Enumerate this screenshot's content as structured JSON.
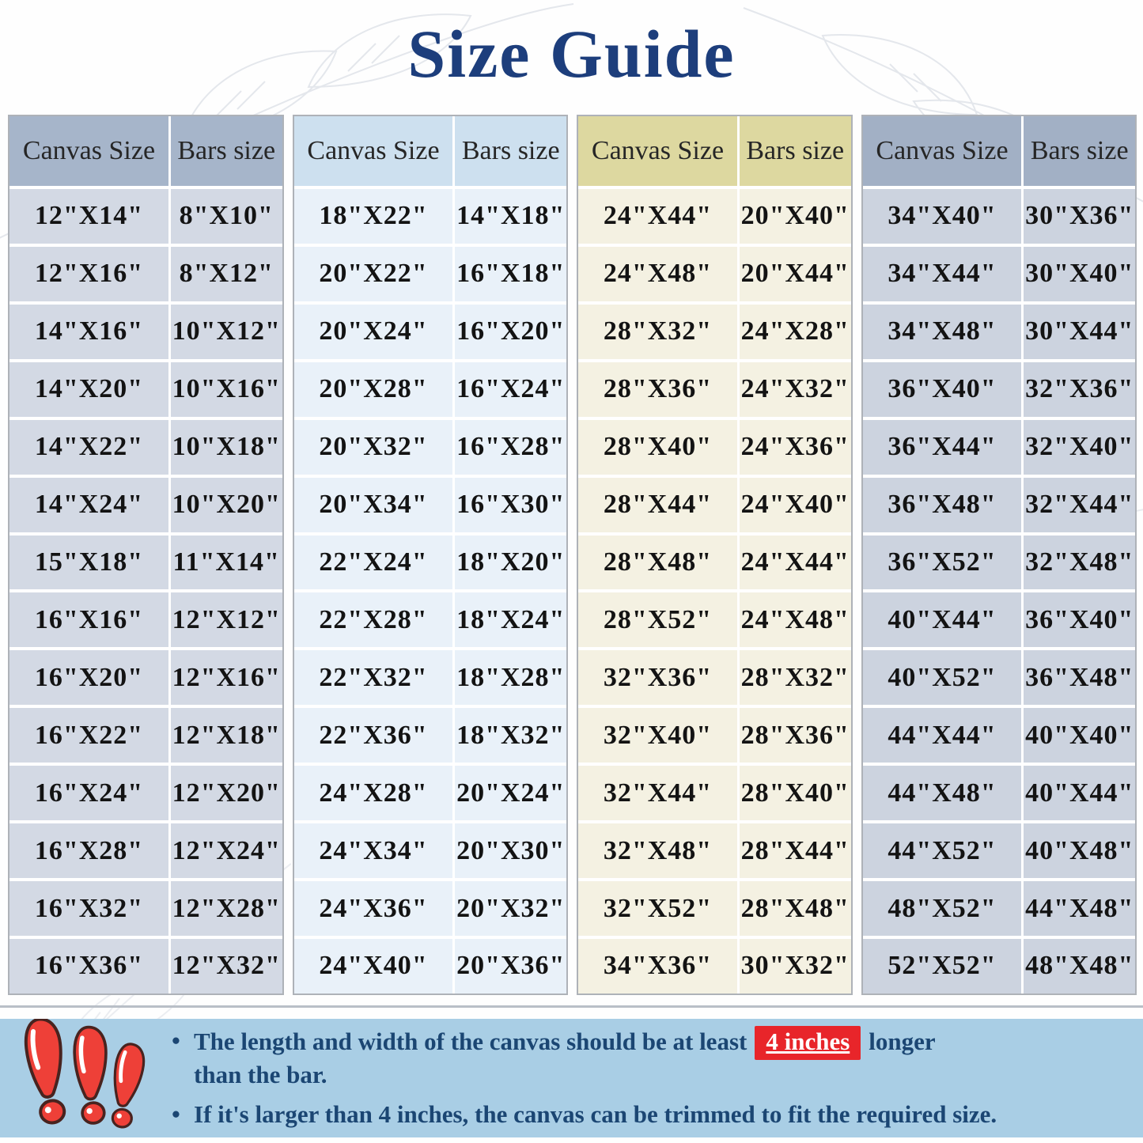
{
  "title": "Size Guide",
  "column_headers": {
    "canvas": "Canvas Size",
    "bars": "Bars size"
  },
  "tables": [
    {
      "theme": {
        "header_bg": "#a6b5ca",
        "body_bg": "#d3d9e4"
      },
      "rows": [
        [
          "12\"X14\"",
          "8\"X10\""
        ],
        [
          "12\"X16\"",
          "8\"X12\""
        ],
        [
          "14\"X16\"",
          "10\"X12\""
        ],
        [
          "14\"X20\"",
          "10\"X16\""
        ],
        [
          "14\"X22\"",
          "10\"X18\""
        ],
        [
          "14\"X24\"",
          "10\"X20\""
        ],
        [
          "15\"X18\"",
          "11\"X14\""
        ],
        [
          "16\"X16\"",
          "12\"X12\""
        ],
        [
          "16\"X20\"",
          "12\"X16\""
        ],
        [
          "16\"X22\"",
          "12\"X18\""
        ],
        [
          "16\"X24\"",
          "12\"X20\""
        ],
        [
          "16\"X28\"",
          "12\"X24\""
        ],
        [
          "16\"X32\"",
          "12\"X28\""
        ],
        [
          "16\"X36\"",
          "12\"X32\""
        ]
      ]
    },
    {
      "theme": {
        "header_bg": "#cde0ef",
        "body_bg": "#e9f1f9"
      },
      "rows": [
        [
          "18\"X22\"",
          "14\"X18\""
        ],
        [
          "20\"X22\"",
          "16\"X18\""
        ],
        [
          "20\"X24\"",
          "16\"X20\""
        ],
        [
          "20\"X28\"",
          "16\"X24\""
        ],
        [
          "20\"X32\"",
          "16\"X28\""
        ],
        [
          "20\"X34\"",
          "16\"X30\""
        ],
        [
          "22\"X24\"",
          "18\"X20\""
        ],
        [
          "22\"X28\"",
          "18\"X24\""
        ],
        [
          "22\"X32\"",
          "18\"X28\""
        ],
        [
          "22\"X36\"",
          "18\"X32\""
        ],
        [
          "24\"X28\"",
          "20\"X24\""
        ],
        [
          "24\"X34\"",
          "20\"X30\""
        ],
        [
          "24\"X36\"",
          "20\"X32\""
        ],
        [
          "24\"X40\"",
          "20\"X36\""
        ]
      ]
    },
    {
      "theme": {
        "header_bg": "#ddd8a0",
        "body_bg": "#f4f1e2"
      },
      "rows": [
        [
          "24\"X44\"",
          "20\"X40\""
        ],
        [
          "24\"X48\"",
          "20\"X44\""
        ],
        [
          "28\"X32\"",
          "24\"X28\""
        ],
        [
          "28\"X36\"",
          "24\"X32\""
        ],
        [
          "28\"X40\"",
          "24\"X36\""
        ],
        [
          "28\"X44\"",
          "24\"X40\""
        ],
        [
          "28\"X48\"",
          "24\"X44\""
        ],
        [
          "28\"X52\"",
          "24\"X48\""
        ],
        [
          "32\"X36\"",
          "28\"X32\""
        ],
        [
          "32\"X40\"",
          "28\"X36\""
        ],
        [
          "32\"X44\"",
          "28\"X40\""
        ],
        [
          "32\"X48\"",
          "28\"X44\""
        ],
        [
          "32\"X52\"",
          "28\"X48\""
        ],
        [
          "34\"X36\"",
          "30\"X32\""
        ]
      ]
    },
    {
      "theme": {
        "header_bg": "#a2b0c5",
        "body_bg": "#ccd3df"
      },
      "rows": [
        [
          "34\"X40\"",
          "30\"X36\""
        ],
        [
          "34\"X44\"",
          "30\"X40\""
        ],
        [
          "34\"X48\"",
          "30\"X44\""
        ],
        [
          "36\"X40\"",
          "32\"X36\""
        ],
        [
          "36\"X44\"",
          "32\"X40\""
        ],
        [
          "36\"X48\"",
          "32\"X44\""
        ],
        [
          "36\"X52\"",
          "32\"X48\""
        ],
        [
          "40\"X44\"",
          "36\"X40\""
        ],
        [
          "40\"X52\"",
          "36\"X48\""
        ],
        [
          "44\"X44\"",
          "40\"X40\""
        ],
        [
          "44\"X48\"",
          "40\"X44\""
        ],
        [
          "44\"X52\"",
          "40\"X48\""
        ],
        [
          "48\"X52\"",
          "44\"X48\""
        ],
        [
          "52\"X52\"",
          "48\"X48\""
        ]
      ]
    }
  ],
  "footer": {
    "bullet": "•",
    "note1": {
      "before": "The length and width of the canvas should be at least",
      "highlight": "4 inches",
      "after": "longer",
      "line2": "than the bar."
    },
    "note2": "If it's larger than 4 inches, the canvas can be trimmed to fit the required size."
  },
  "colors": {
    "title": "#1d3e7c",
    "footer_bg": "#a9cee5",
    "footer_text": "#1b4673",
    "highlight_bg": "#e8252a",
    "warn_icon_red": "#ee4038"
  }
}
